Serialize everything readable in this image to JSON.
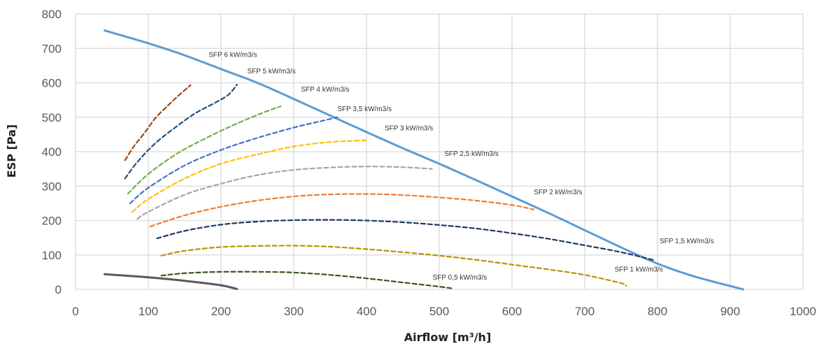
{
  "chart_data": {
    "type": "line",
    "title": "",
    "xlabel": "Airflow [m³/h]",
    "ylabel": "ESP  [Pa]",
    "xlim": [
      0,
      1000
    ],
    "ylim": [
      0,
      800
    ],
    "xticks": [
      0,
      100,
      200,
      300,
      400,
      500,
      600,
      700,
      800,
      900,
      1000
    ],
    "yticks": [
      0,
      100,
      200,
      300,
      400,
      500,
      600,
      700,
      800
    ],
    "grid": true,
    "legend": "none",
    "series": [
      {
        "color": "#5B9BD5",
        "style": "solid",
        "points": [
          [
            40,
            752
          ],
          [
            100,
            715
          ],
          [
            150,
            680
          ],
          [
            200,
            640
          ],
          [
            250,
            600
          ],
          [
            300,
            553
          ],
          [
            350,
            505
          ],
          [
            400,
            457
          ],
          [
            450,
            410
          ],
          [
            500,
            365
          ],
          [
            550,
            318
          ],
          [
            600,
            270
          ],
          [
            650,
            222
          ],
          [
            700,
            172
          ],
          [
            750,
            122
          ],
          [
            800,
            75
          ],
          [
            850,
            38
          ],
          [
            918,
            0
          ]
        ]
      },
      {
        "color": "#595959",
        "style": "solid",
        "points": [
          [
            40,
            44
          ],
          [
            100,
            35
          ],
          [
            150,
            25
          ],
          [
            200,
            12
          ],
          [
            222,
            1
          ]
        ]
      },
      {
        "color": "#A0460C",
        "style": "dashed",
        "points": [
          [
            68,
            375
          ],
          [
            80,
            415
          ],
          [
            95,
            455
          ],
          [
            110,
            498
          ],
          [
            125,
            530
          ],
          [
            140,
            560
          ],
          [
            158,
            593
          ]
        ]
      },
      {
        "color": "#1F4E79",
        "style": "dashed",
        "points": [
          [
            68,
            322
          ],
          [
            85,
            370
          ],
          [
            110,
            425
          ],
          [
            140,
            475
          ],
          [
            165,
            512
          ],
          [
            190,
            540
          ],
          [
            210,
            565
          ],
          [
            222,
            595
          ]
        ]
      },
      {
        "color": "#70AD47",
        "style": "dashed",
        "points": [
          [
            72,
            278
          ],
          [
            100,
            335
          ],
          [
            140,
            395
          ],
          [
            180,
            440
          ],
          [
            220,
            480
          ],
          [
            260,
            515
          ],
          [
            282,
            532
          ]
        ]
      },
      {
        "color": "#4472C4",
        "style": "dashed",
        "points": [
          [
            75,
            250
          ],
          [
            100,
            295
          ],
          [
            150,
            360
          ],
          [
            200,
            405
          ],
          [
            250,
            440
          ],
          [
            300,
            470
          ],
          [
            340,
            490
          ],
          [
            360,
            500
          ]
        ]
      },
      {
        "color": "#FFC000",
        "style": "dashed",
        "points": [
          [
            78,
            225
          ],
          [
            100,
            262
          ],
          [
            150,
            322
          ],
          [
            200,
            365
          ],
          [
            250,
            392
          ],
          [
            300,
            415
          ],
          [
            350,
            428
          ],
          [
            400,
            433
          ]
        ]
      },
      {
        "color": "#A5A5A5",
        "style": "dashed",
        "points": [
          [
            85,
            205
          ],
          [
            100,
            225
          ],
          [
            150,
            275
          ],
          [
            200,
            307
          ],
          [
            250,
            332
          ],
          [
            300,
            347
          ],
          [
            350,
            354
          ],
          [
            400,
            357
          ],
          [
            450,
            355
          ],
          [
            490,
            350
          ]
        ]
      },
      {
        "color": "#ED7D31",
        "style": "dashed",
        "points": [
          [
            103,
            183
          ],
          [
            150,
            215
          ],
          [
            200,
            240
          ],
          [
            250,
            258
          ],
          [
            300,
            270
          ],
          [
            350,
            276
          ],
          [
            400,
            277
          ],
          [
            450,
            274
          ],
          [
            500,
            267
          ],
          [
            550,
            258
          ],
          [
            600,
            245
          ],
          [
            630,
            232
          ]
        ]
      },
      {
        "color": "#203864",
        "style": "dashed",
        "points": [
          [
            112,
            148
          ],
          [
            150,
            170
          ],
          [
            200,
            188
          ],
          [
            250,
            197
          ],
          [
            300,
            201
          ],
          [
            350,
            202
          ],
          [
            400,
            200
          ],
          [
            450,
            195
          ],
          [
            500,
            187
          ],
          [
            550,
            177
          ],
          [
            600,
            163
          ],
          [
            650,
            147
          ],
          [
            700,
            128
          ],
          [
            750,
            108
          ],
          [
            795,
            85
          ]
        ]
      },
      {
        "color": "#BF9000",
        "style": "dashed",
        "points": [
          [
            118,
            98
          ],
          [
            150,
            112
          ],
          [
            200,
            123
          ],
          [
            250,
            126
          ],
          [
            300,
            127
          ],
          [
            350,
            124
          ],
          [
            400,
            117
          ],
          [
            450,
            108
          ],
          [
            500,
            98
          ],
          [
            550,
            86
          ],
          [
            600,
            72
          ],
          [
            650,
            58
          ],
          [
            700,
            42
          ],
          [
            750,
            18
          ],
          [
            757,
            10
          ]
        ]
      },
      {
        "color": "#375623",
        "style": "dashed",
        "points": [
          [
            118,
            40
          ],
          [
            150,
            47
          ],
          [
            200,
            51
          ],
          [
            250,
            51
          ],
          [
            300,
            49
          ],
          [
            350,
            42
          ],
          [
            400,
            32
          ],
          [
            450,
            20
          ],
          [
            500,
            8
          ],
          [
            520,
            2
          ]
        ]
      }
    ],
    "annotations": [
      {
        "text": "SFP 6 kW/m3/s",
        "x": 183,
        "y": 675
      },
      {
        "text": "SFP 5 kW/m3/s",
        "x": 236,
        "y": 627
      },
      {
        "text": "SFP 4 kW/m3/s",
        "x": 310,
        "y": 575
      },
      {
        "text": "SFP 3,5 kW/m3/s",
        "x": 360,
        "y": 518
      },
      {
        "text": "SFP 3 kW/m3/s",
        "x": 425,
        "y": 462
      },
      {
        "text": "SFP 2,5 kW/m3/s",
        "x": 507,
        "y": 388
      },
      {
        "text": "SFP 2 kW/m3/s",
        "x": 630,
        "y": 276
      },
      {
        "text": "SFP 1,5 kW/m3/s",
        "x": 803,
        "y": 134
      },
      {
        "text": "SFP 1 kW/m3/s",
        "x": 741,
        "y": 52
      },
      {
        "text": "SFP 0,5 kW/m3/s",
        "x": 491,
        "y": 28
      }
    ]
  }
}
